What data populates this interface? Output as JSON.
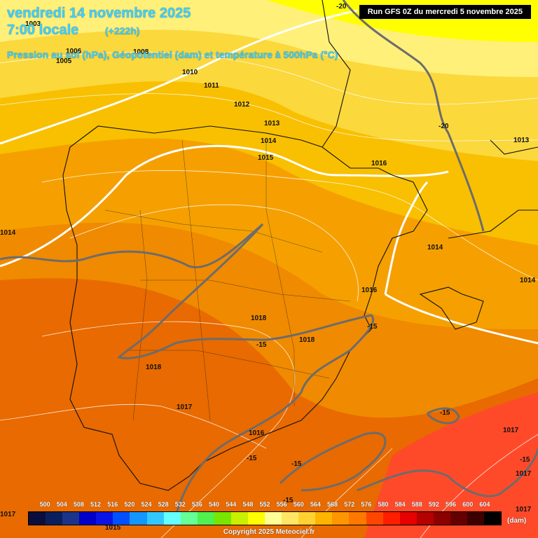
{
  "header": {
    "date": "vendredi 14 novembre 2025",
    "time": "7:00 locale",
    "offset": "(+222h)",
    "description": "Pression au sol (hPa), Géopotentiel (dam) et température à 500hPa (°C)",
    "run_info": "Run GFS 0Z du mercredi 5 novembre 2025"
  },
  "map": {
    "region": "Iberian Peninsula",
    "pressure_labels": [
      "1003",
      "1005",
      "1006",
      "1008",
      "1010",
      "1011",
      "1012",
      "1013",
      "1014",
      "1015",
      "1016",
      "1014",
      "1013",
      "1014",
      "1014",
      "1016",
      "1018",
      "1018",
      "1018",
      "1017",
      "1016",
      "1017",
      "1017",
      "1017",
      "1015",
      "1017"
    ],
    "temperature_labels": [
      "-20",
      "-20",
      "-15",
      "-15",
      "-15",
      "-15",
      "-15",
      "-15",
      "-15"
    ]
  },
  "legend": {
    "values": [
      "500",
      "504",
      "508",
      "512",
      "516",
      "520",
      "524",
      "528",
      "532",
      "536",
      "540",
      "544",
      "548",
      "552",
      "556",
      "560",
      "564",
      "568",
      "572",
      "576",
      "580",
      "584",
      "588",
      "592",
      "596",
      "600",
      "604"
    ],
    "colors": [
      "#0b0e3c",
      "#0b1f5c",
      "#1a348a",
      "#0000c8",
      "#0a14e6",
      "#0050ff",
      "#1496ff",
      "#32c8ff",
      "#64ffff",
      "#64ff96",
      "#50f050",
      "#78e600",
      "#c8f000",
      "#ffff00",
      "#ffff96",
      "#ffe664",
      "#ffd232",
      "#ffb400",
      "#ff9600",
      "#ff7800",
      "#ff4600",
      "#ff1e00",
      "#e60000",
      "#b40000",
      "#8c0000",
      "#640000",
      "#3c0000",
      "#000000"
    ],
    "unit": "(dam)"
  },
  "footer": {
    "copyright": "Copyright 2025 Meteociel.fr"
  }
}
